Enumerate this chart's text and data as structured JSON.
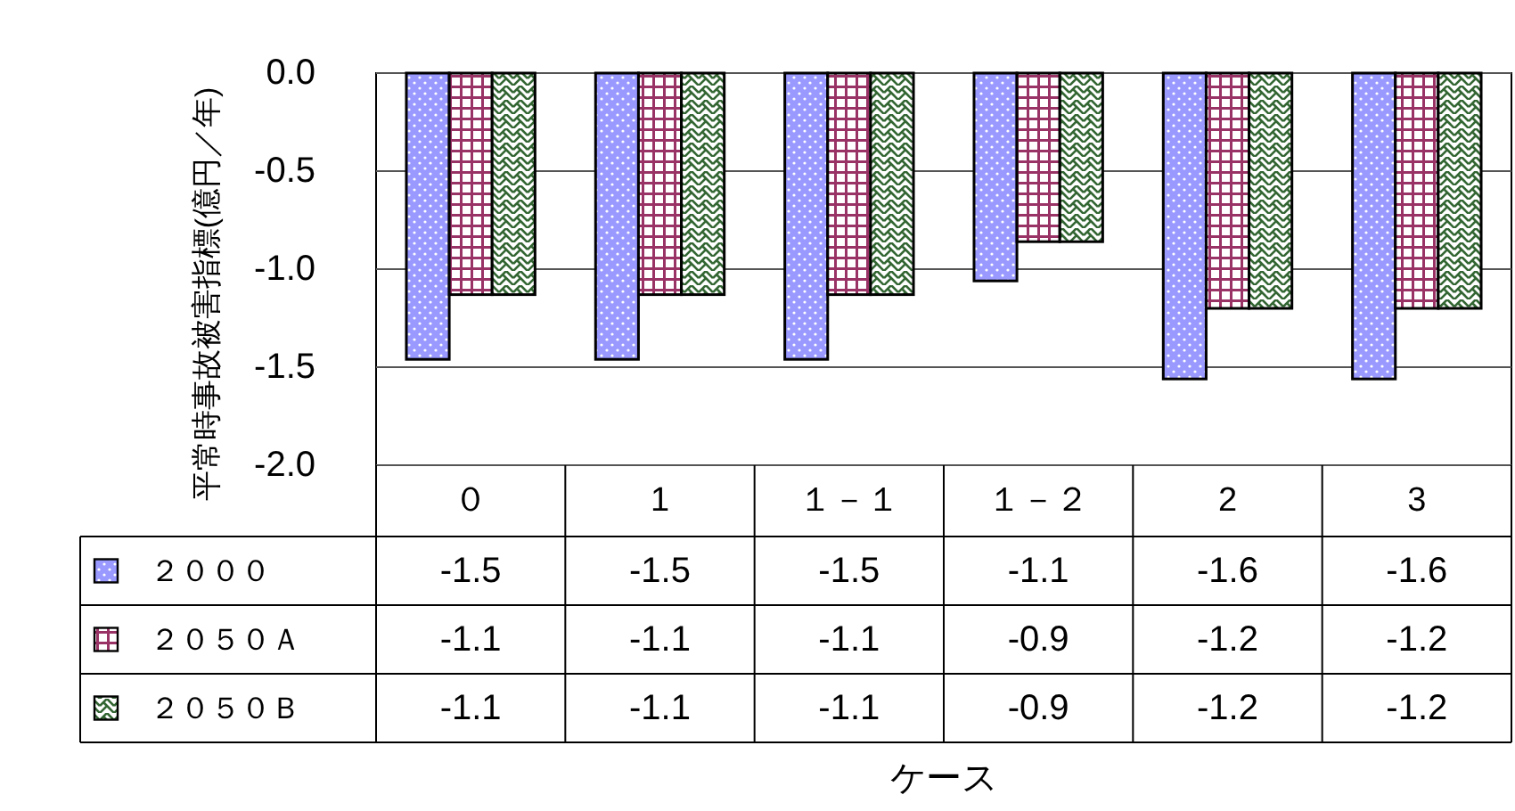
{
  "chart_data": {
    "type": "bar",
    "ylabel": "平常時事故被害指標(億円／年)",
    "annotations": [
      "ケース"
    ],
    "categories": [
      "０",
      "1",
      "１－１",
      "１－２",
      "2",
      "3"
    ],
    "series": [
      {
        "name": "２０００",
        "color": "#9999ff",
        "values": [
          -1.46,
          -1.46,
          -1.46,
          -1.06,
          -1.56,
          -1.56
        ],
        "value_labels": [
          "-1.5",
          "-1.5",
          "-1.5",
          "-1.1",
          "-1.6",
          "-1.6"
        ]
      },
      {
        "name": "２０５０Ａ",
        "color": "#993366",
        "values": [
          -1.13,
          -1.13,
          -1.13,
          -0.86,
          -1.2,
          -1.2
        ],
        "value_labels": [
          "-1.1",
          "-1.1",
          "-1.1",
          "-0.9",
          "-1.2",
          "-1.2"
        ]
      },
      {
        "name": "２０５０Ｂ",
        "color": "#336633",
        "values": [
          -1.13,
          -1.13,
          -1.13,
          -0.86,
          -1.2,
          -1.2
        ],
        "value_labels": [
          "-1.1",
          "-1.1",
          "-1.1",
          "-0.9",
          "-1.2",
          "-1.2"
        ]
      }
    ],
    "ylim": [
      -2.0,
      0.0
    ],
    "yticks": [
      {
        "value": 0,
        "label": "0.0"
      },
      -0.5,
      {
        "value": -1,
        "label": "-1.0"
      },
      -1.5,
      {
        "value": -2,
        "label": "-2.0"
      }
    ],
    "grid": "y",
    "legend": "bottom left"
  }
}
